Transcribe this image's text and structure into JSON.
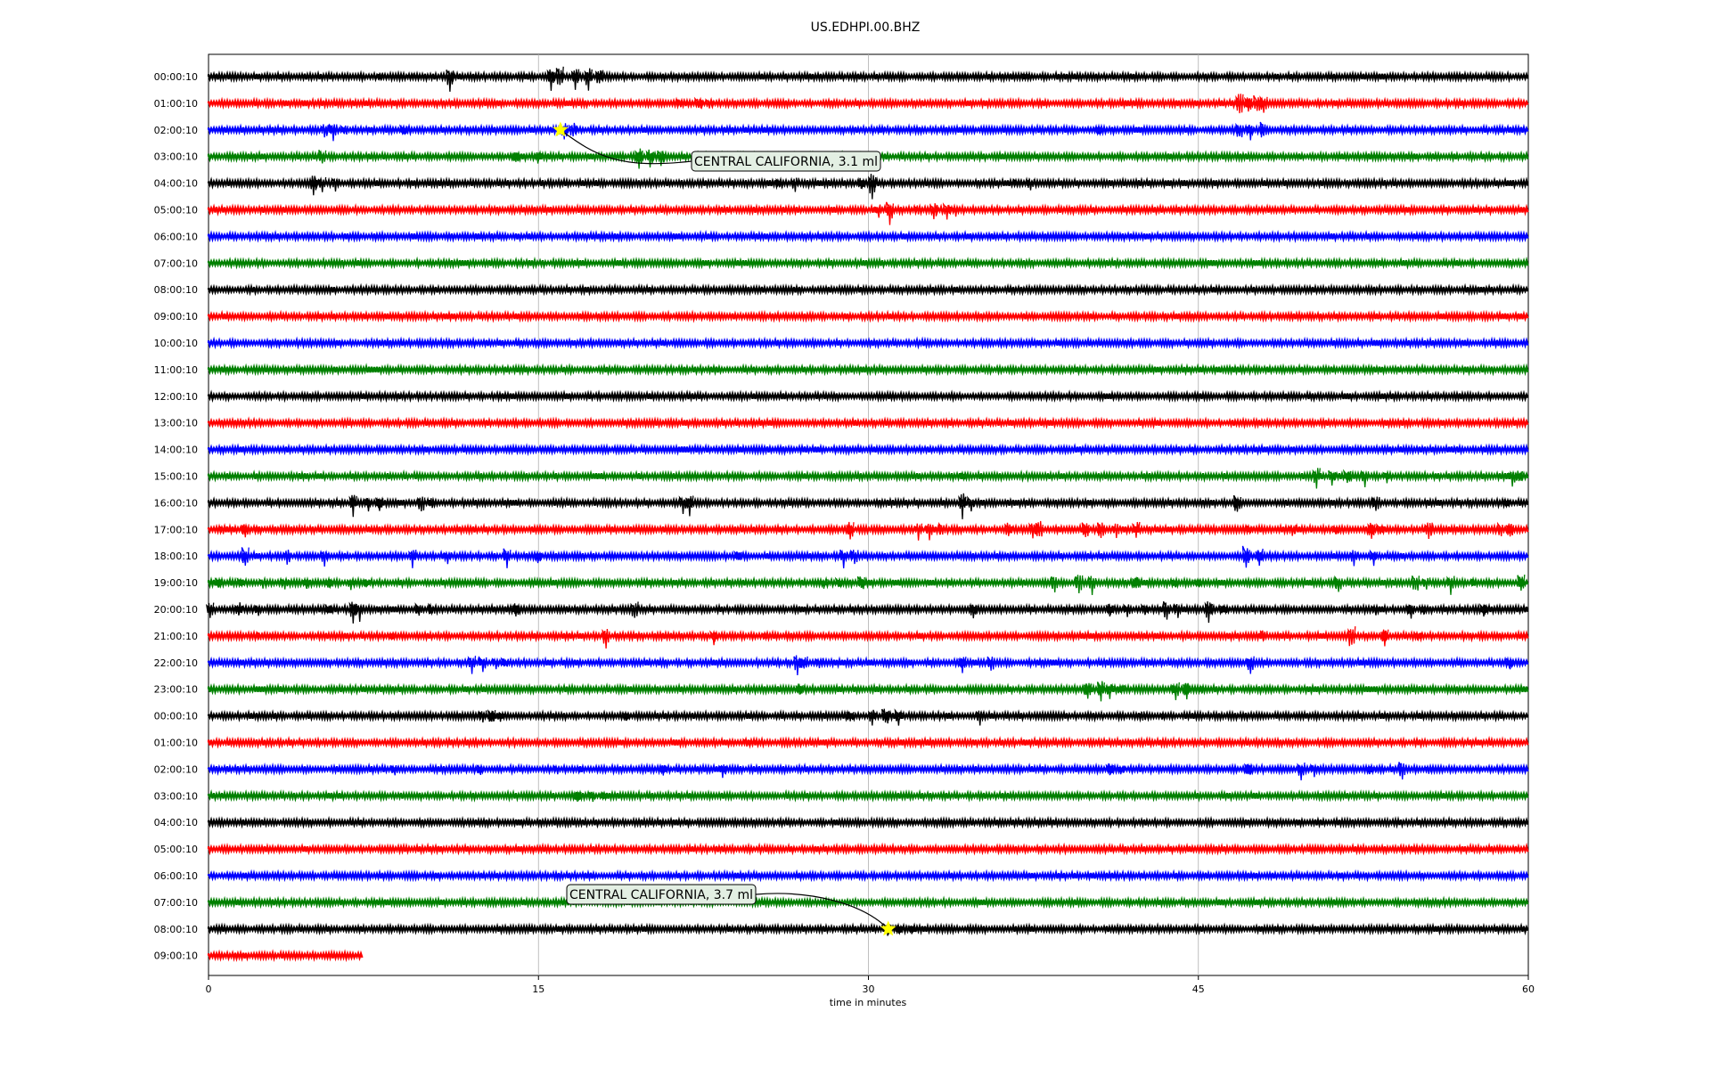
{
  "chart_data": {
    "type": "line",
    "title": "US.EDHPI.00.BHZ",
    "xlabel": "time in minutes",
    "ylabel": "",
    "xlim": [
      0,
      60
    ],
    "x_ticks": [
      "0",
      "15",
      "30",
      "45",
      "60"
    ],
    "x_tick_values": [
      0,
      15,
      30,
      45,
      60
    ],
    "grid": "vertical lines at 15, 30, 45",
    "trace_colors": [
      "#000000",
      "#ff0000",
      "#0000ff",
      "#008000"
    ],
    "rows": [
      {
        "label": "00:00:10",
        "events": [
          [
            7.9,
            0.4
          ],
          [
            9.2,
            0.5
          ],
          [
            11.0,
            1.3
          ],
          [
            15.6,
            1.2
          ],
          [
            16.0,
            1.6
          ],
          [
            16.7,
            1.2
          ],
          [
            17.3,
            1.4
          ],
          [
            17.8,
            1.0
          ],
          [
            37.2,
            0.4
          ]
        ]
      },
      {
        "label": "01:00:10",
        "events": [
          [
            21.5,
            0.7
          ],
          [
            22.3,
            0.8
          ],
          [
            22.8,
            0.6
          ],
          [
            46.9,
            1.4
          ],
          [
            47.3,
            1.0
          ],
          [
            47.7,
            1.3
          ],
          [
            48.0,
            1.0
          ]
        ]
      },
      {
        "label": "02:00:10",
        "events": [
          [
            5.3,
            0.9
          ],
          [
            5.7,
            1.0
          ],
          [
            6.2,
            0.7
          ],
          [
            8.9,
            0.6
          ],
          [
            16.2,
            1.0
          ],
          [
            16.6,
            1.2
          ],
          [
            30.6,
            0.5
          ],
          [
            40.5,
            0.4
          ],
          [
            46.9,
            1.1
          ],
          [
            47.4,
            1.0
          ],
          [
            48.0,
            1.2
          ]
        ]
      },
      {
        "label": "03:00:10",
        "events": [
          [
            5.2,
            1.0
          ],
          [
            14.0,
            0.7
          ],
          [
            15.0,
            0.6
          ],
          [
            19.6,
            1.2
          ],
          [
            20.1,
            1.1
          ],
          [
            20.6,
            0.9
          ],
          [
            22.5,
            0.5
          ]
        ]
      },
      {
        "label": "04:00:10",
        "events": [
          [
            4.8,
            1.1
          ],
          [
            5.2,
            0.9
          ],
          [
            5.8,
            0.7
          ],
          [
            26.0,
            0.7
          ],
          [
            26.7,
            0.8
          ],
          [
            29.7,
            0.8
          ],
          [
            30.2,
            1.5
          ],
          [
            36.8,
            0.5
          ],
          [
            37.4,
            0.8
          ]
        ]
      },
      {
        "label": "05:00:10",
        "events": [
          [
            30.5,
            0.8
          ],
          [
            31.0,
            1.3
          ],
          [
            32.3,
            0.7
          ],
          [
            33.0,
            1.0
          ],
          [
            33.6,
            0.8
          ],
          [
            34.0,
            0.6
          ]
        ]
      },
      {
        "label": "06:00:10",
        "events": []
      },
      {
        "label": "07:00:10",
        "events": []
      },
      {
        "label": "08:00:10",
        "events": []
      },
      {
        "label": "09:00:10",
        "events": []
      },
      {
        "label": "10:00:10",
        "events": []
      },
      {
        "label": "11:00:10",
        "events": []
      },
      {
        "label": "12:00:10",
        "events": []
      },
      {
        "label": "13:00:10",
        "events": []
      },
      {
        "label": "14:00:10",
        "events": []
      },
      {
        "label": "15:00:10",
        "events": [
          [
            34.4,
            0.4
          ],
          [
            50.4,
            1.2
          ],
          [
            51.1,
            0.8
          ],
          [
            51.8,
            0.8
          ],
          [
            52.6,
            0.9
          ],
          [
            53.6,
            0.6
          ],
          [
            59.3,
            1.0
          ],
          [
            59.6,
            0.8
          ]
        ]
      },
      {
        "label": "16:00:10",
        "events": [
          [
            6.6,
            1.3
          ],
          [
            7.3,
            0.8
          ],
          [
            7.8,
            0.7
          ],
          [
            9.7,
            1.2
          ],
          [
            10.2,
            0.7
          ],
          [
            21.6,
            0.9
          ],
          [
            21.9,
            1.1
          ],
          [
            34.3,
            1.4
          ],
          [
            34.7,
            0.8
          ],
          [
            46.8,
            1.2
          ],
          [
            53.1,
            1.1
          ],
          [
            59.0,
            0.6
          ]
        ]
      },
      {
        "label": "17:00:10",
        "events": [
          [
            0.7,
            0.5
          ],
          [
            1.7,
            0.8
          ],
          [
            2.3,
            0.4
          ],
          [
            29.2,
            1.1
          ],
          [
            32.3,
            0.9
          ],
          [
            32.8,
            0.9
          ],
          [
            33.4,
            1.0
          ],
          [
            36.4,
            1.1
          ],
          [
            37.5,
            0.9
          ],
          [
            37.8,
            1.3
          ],
          [
            39.9,
            1.5
          ],
          [
            40.6,
            1.0
          ],
          [
            41.3,
            1.0
          ],
          [
            42.2,
            1.1
          ],
          [
            47.4,
            0.5
          ],
          [
            49.3,
            0.7
          ],
          [
            51.3,
            0.6
          ],
          [
            52.9,
            1.0
          ],
          [
            53.3,
            0.7
          ],
          [
            55.5,
            1.0
          ],
          [
            58.8,
            0.9
          ],
          [
            59.2,
            1.0
          ]
        ]
      },
      {
        "label": "18:00:10",
        "events": [
          [
            1.7,
            1.5
          ],
          [
            3.6,
            1.0
          ],
          [
            5.3,
            0.9
          ],
          [
            9.3,
            1.1
          ],
          [
            10.9,
            0.7
          ],
          [
            13.6,
            1.1
          ],
          [
            15.0,
            0.8
          ],
          [
            24.1,
            0.7
          ],
          [
            28.9,
            1.0
          ],
          [
            29.4,
            1.1
          ],
          [
            47.2,
            1.5
          ],
          [
            47.8,
            1.1
          ],
          [
            52.1,
            1.0
          ],
          [
            53.0,
            0.8
          ]
        ]
      },
      {
        "label": "19:00:10",
        "events": [
          [
            0.5,
            0.6
          ],
          [
            1.5,
            0.6
          ],
          [
            2.5,
            0.6
          ],
          [
            3.5,
            0.6
          ],
          [
            4.5,
            0.6
          ],
          [
            5.5,
            0.6
          ],
          [
            6.5,
            0.6
          ],
          [
            7.2,
            0.6
          ],
          [
            28.0,
            0.5
          ],
          [
            28.7,
            0.6
          ],
          [
            29.7,
            1.0
          ],
          [
            38.5,
            1.1
          ],
          [
            39.6,
            1.2
          ],
          [
            40.2,
            1.1
          ],
          [
            42.2,
            0.8
          ],
          [
            44.0,
            0.5
          ],
          [
            45.0,
            0.4
          ],
          [
            51.4,
            1.0
          ],
          [
            54.9,
            1.2
          ],
          [
            55.4,
            0.9
          ],
          [
            56.5,
            1.0
          ],
          [
            57.6,
            0.5
          ],
          [
            59.7,
            1.3
          ]
        ]
      },
      {
        "label": "20:00:10",
        "events": [
          [
            0.1,
            1.2
          ],
          [
            1.4,
            1.2
          ],
          [
            2.3,
            0.6
          ],
          [
            5.5,
            0.6
          ],
          [
            6.6,
            1.2
          ],
          [
            6.9,
            1.0
          ],
          [
            9.6,
            0.8
          ],
          [
            10.2,
            0.7
          ],
          [
            14.0,
            0.9
          ],
          [
            19.4,
            1.2
          ],
          [
            34.8,
            0.9
          ],
          [
            41.0,
            0.9
          ],
          [
            41.8,
            0.8
          ],
          [
            42.6,
            0.8
          ],
          [
            43.6,
            1.2
          ],
          [
            44.1,
            0.8
          ],
          [
            45.5,
            1.3
          ],
          [
            46.2,
            0.6
          ],
          [
            53.1,
            0.6
          ],
          [
            54.7,
            0.8
          ],
          [
            55.3,
            0.5
          ],
          [
            58.0,
            0.7
          ]
        ]
      },
      {
        "label": "21:00:10",
        "events": [
          [
            2.4,
            0.6
          ],
          [
            2.9,
            0.4
          ],
          [
            8.4,
            0.4
          ],
          [
            18.1,
            1.2
          ],
          [
            23.0,
            0.8
          ],
          [
            25.4,
            0.4
          ],
          [
            48.0,
            0.8
          ],
          [
            52.0,
            1.5
          ],
          [
            53.5,
            1.0
          ],
          [
            55.0,
            0.6
          ]
        ]
      },
      {
        "label": "22:00:10",
        "events": [
          [
            12.0,
            1.2
          ],
          [
            12.5,
            0.8
          ],
          [
            13.1,
            0.6
          ],
          [
            13.5,
            0.6
          ],
          [
            26.8,
            1.2
          ],
          [
            27.1,
            0.9
          ],
          [
            27.8,
            0.7
          ],
          [
            34.3,
            0.9
          ],
          [
            35.6,
            1.0
          ],
          [
            47.4,
            1.1
          ],
          [
            59.2,
            0.6
          ]
        ]
      },
      {
        "label": "23:00:10",
        "events": [
          [
            26.9,
            0.9
          ],
          [
            40.0,
            1.0
          ],
          [
            40.6,
            1.2
          ],
          [
            41.0,
            0.8
          ],
          [
            41.5,
            0.6
          ],
          [
            44.0,
            1.1
          ],
          [
            44.5,
            0.9
          ],
          [
            45.2,
            0.5
          ]
        ]
      },
      {
        "label": "00:00:10",
        "events": [
          [
            12.5,
            0.8
          ],
          [
            12.9,
            0.9
          ],
          [
            13.3,
            0.6
          ],
          [
            19.0,
            0.4
          ],
          [
            29.2,
            0.8
          ],
          [
            30.2,
            1.0
          ],
          [
            30.8,
            1.3
          ],
          [
            31.4,
            0.8
          ],
          [
            35.1,
            0.9
          ],
          [
            42.5,
            0.8
          ],
          [
            43.5,
            0.4
          ]
        ]
      },
      {
        "label": "01:00:10",
        "events": [
          [
            24.5,
            0.5
          ],
          [
            25.0,
            0.4
          ]
        ]
      },
      {
        "label": "02:00:10",
        "events": [
          [
            8.5,
            0.7
          ],
          [
            12.4,
            0.7
          ],
          [
            15.9,
            0.6
          ],
          [
            17.0,
            0.5
          ],
          [
            20.7,
            0.6
          ],
          [
            23.4,
            0.7
          ],
          [
            41.0,
            0.9
          ],
          [
            41.5,
            0.6
          ],
          [
            47.3,
            0.9
          ],
          [
            49.7,
            1.0
          ],
          [
            50.3,
            0.7
          ],
          [
            52.8,
            0.5
          ],
          [
            53.2,
            0.5
          ],
          [
            54.3,
            1.1
          ],
          [
            55.5,
            0.5
          ]
        ]
      },
      {
        "label": "03:00:10",
        "events": [
          [
            16.8,
            0.6
          ],
          [
            17.5,
            0.6
          ],
          [
            18.0,
            0.5
          ]
        ]
      },
      {
        "label": "04:00:10",
        "events": []
      },
      {
        "label": "05:00:10",
        "events": []
      },
      {
        "label": "06:00:10",
        "events": []
      },
      {
        "label": "07:00:10",
        "events": []
      },
      {
        "label": "08:00:10",
        "events": [
          [
            30.9,
            0.7
          ],
          [
            31.4,
            0.6
          ],
          [
            32.0,
            0.5
          ]
        ],
        "end": 60
      },
      {
        "label": "09:00:10",
        "events": [],
        "end": 7.0
      }
    ],
    "annotations": [
      {
        "text": "CENTRAL CALIFORNIA, 3.1 ml",
        "row": 2,
        "x": 16.0,
        "marker_color": "#ffff00"
      },
      {
        "text": "CENTRAL CALIFORNIA, 3.7 ml",
        "row": 32,
        "x": 30.9,
        "marker_color": "#ffff00"
      }
    ]
  }
}
